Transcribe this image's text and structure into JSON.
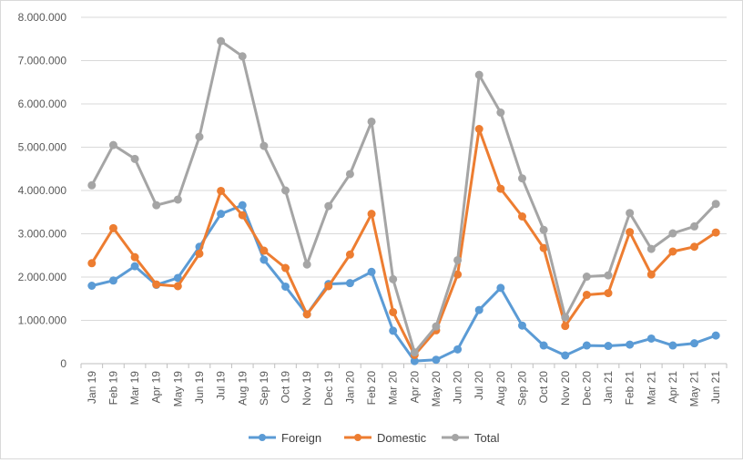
{
  "chart_data": {
    "type": "line",
    "title": "",
    "xlabel": "",
    "ylabel": "",
    "ylim": [
      0,
      8000000
    ],
    "y_ticks": [
      "0",
      "1.000.000",
      "2.000.000",
      "3.000.000",
      "4.000.000",
      "5.000.000",
      "6.000.000",
      "7.000.000",
      "8.000.000"
    ],
    "grid": "horizontal",
    "legend_position": "bottom",
    "categories": [
      "Jan 19",
      "Feb 19",
      "Mar 19",
      "Apr 19",
      "May 19",
      "Jun 19",
      "Jul 19",
      "Aug 19",
      "Sep 19",
      "Oct 19",
      "Nov 19",
      "Dec 19",
      "Jan 20",
      "Feb 20",
      "Mar 20",
      "Apr 20",
      "May 20",
      "Jun 20",
      "Jul 20",
      "Aug 20",
      "Sep 20",
      "Oct 20",
      "Nov 20",
      "Dec 20",
      "Jan 21",
      "Feb 21",
      "Mar 21",
      "Apr 21",
      "May 21",
      "Jun 21"
    ],
    "series": [
      {
        "name": "Foreign",
        "color": "#5b9bd5",
        "values": [
          1800000,
          1920000,
          2250000,
          1820000,
          1980000,
          2700000,
          3460000,
          3660000,
          2400000,
          1780000,
          1140000,
          1840000,
          1860000,
          2120000,
          760000,
          60000,
          90000,
          330000,
          1240000,
          1750000,
          880000,
          420000,
          190000,
          420000,
          410000,
          440000,
          580000,
          420000,
          470000,
          650000
        ]
      },
      {
        "name": "Domestic",
        "color": "#ed7d31",
        "values": [
          2320000,
          3130000,
          2460000,
          1830000,
          1790000,
          2540000,
          3990000,
          3430000,
          2610000,
          2210000,
          1140000,
          1790000,
          2520000,
          3460000,
          1190000,
          200000,
          770000,
          2060000,
          5420000,
          4040000,
          3400000,
          2670000,
          870000,
          1590000,
          1630000,
          3040000,
          2060000,
          2590000,
          2700000,
          3030000
        ]
      },
      {
        "name": "Total",
        "color": "#a5a5a5",
        "values": [
          4120000,
          5050000,
          4730000,
          3660000,
          3790000,
          5240000,
          7450000,
          7100000,
          5030000,
          4000000,
          2290000,
          3640000,
          4380000,
          5590000,
          1950000,
          260000,
          860000,
          2390000,
          6670000,
          5800000,
          4280000,
          3090000,
          1070000,
          2010000,
          2040000,
          3480000,
          2650000,
          3010000,
          3170000,
          3690000
        ]
      }
    ]
  }
}
